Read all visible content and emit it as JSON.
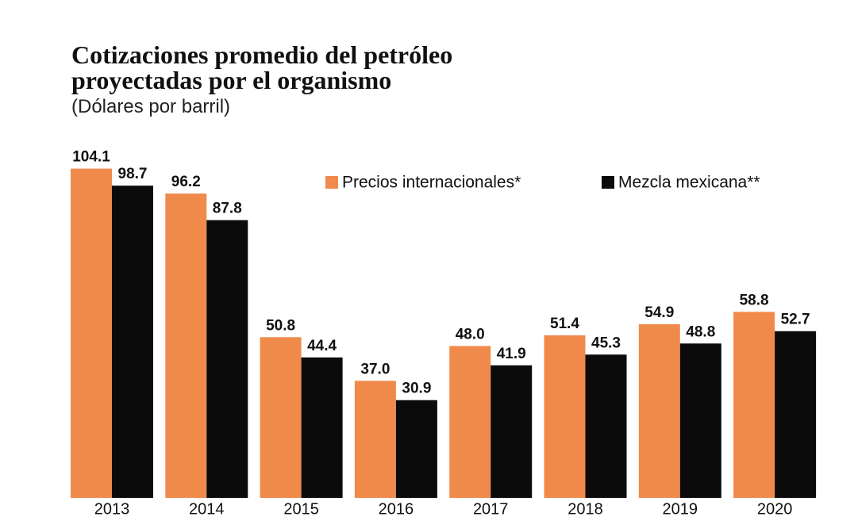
{
  "chart_data": {
    "type": "bar",
    "title": "Cotizaciones promedio del petróleo proyectadas por el organismo",
    "subtitle": "(Dólares por barril)",
    "categories": [
      "2013",
      "2014",
      "2015",
      "2016",
      "2017",
      "2018",
      "2019",
      "2020"
    ],
    "series": [
      {
        "name": "Precios internacionales*",
        "color": "#f08a4b",
        "values": [
          104.1,
          96.2,
          50.8,
          37.0,
          48.0,
          51.4,
          54.9,
          58.8
        ],
        "value_labels": [
          "104.1",
          "96.2",
          "50.8",
          "37.0",
          "48.0",
          "51.4",
          "54.9",
          "58.8"
        ]
      },
      {
        "name": "Mezcla mexicana**",
        "color": "#0b0b0b",
        "values": [
          98.7,
          87.8,
          44.4,
          30.9,
          41.9,
          45.3,
          48.8,
          52.7
        ],
        "value_labels": [
          "98.7",
          "87.8",
          "44.4",
          "30.9",
          "41.9",
          "45.3",
          "48.8",
          "52.7"
        ]
      }
    ]
  }
}
